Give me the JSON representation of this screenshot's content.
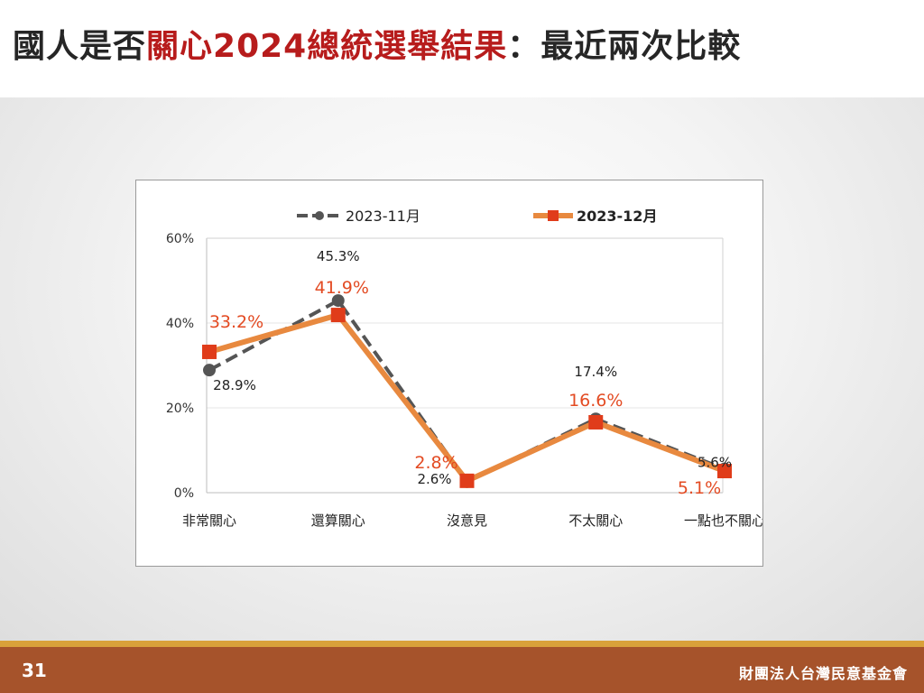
{
  "slide": {
    "title_prefix": "國人是否",
    "title_highlight": "關心2024總統選舉結果",
    "title_suffix": "：最近兩次比較",
    "page_number": "31",
    "organization": "財團法人台灣民意基金會"
  },
  "chart_data": {
    "type": "line",
    "categories": [
      "非常關心",
      "還算關心",
      "沒意見",
      "不太關心",
      "一點也不關心"
    ],
    "ylim": [
      0,
      60
    ],
    "yticks": [
      "0%",
      "20%",
      "40%",
      "60%"
    ],
    "grid": true,
    "legend_position": "top",
    "series": [
      {
        "name": "2023-11月",
        "values": [
          28.9,
          45.3,
          2.6,
          17.4,
          5.6
        ],
        "labels": [
          "28.9%",
          "45.3%",
          "2.6%",
          "17.4%",
          "5.6%"
        ],
        "color": "#555555",
        "style": "dashed",
        "marker": "circle"
      },
      {
        "name": "2023-12月",
        "values": [
          33.2,
          41.9,
          2.8,
          16.6,
          5.1
        ],
        "labels": [
          "33.2%",
          "41.9%",
          "2.8%",
          "16.6%",
          "5.1%"
        ],
        "color": "#e8893f",
        "marker_color": "#e03c1a",
        "label_color": "#e34b23",
        "style": "solid",
        "marker": "square"
      }
    ]
  }
}
